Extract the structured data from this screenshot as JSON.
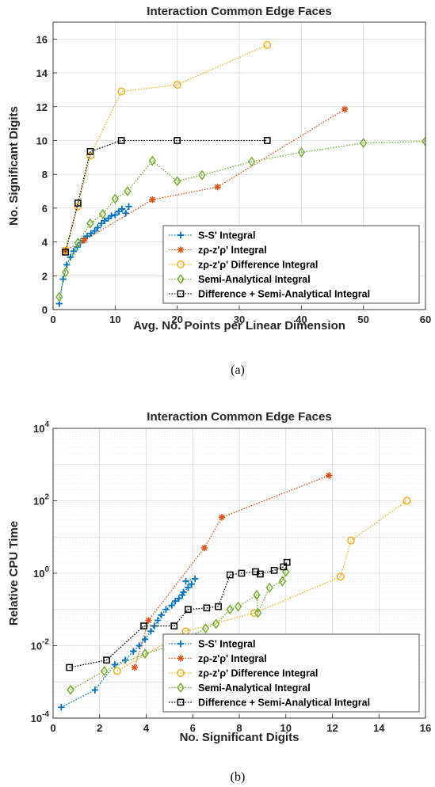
{
  "colors": {
    "ss": "#0072BD",
    "zrho": "#D95319",
    "diff": "#EDB120",
    "semi": "#77AC30",
    "comb": "#000000",
    "grid": "#d9d9d9",
    "axis": "#262626"
  },
  "chart_data": [
    {
      "type": "line",
      "title": "Interaction Common Edge Faces",
      "xlabel": "Avg. No. Points per Linear Dimension",
      "ylabel": "No. Significant Digits",
      "caption": "(a)",
      "xlim": [
        0,
        60
      ],
      "ylim": [
        0,
        17
      ],
      "xticks": [
        0,
        10,
        20,
        30,
        40,
        50,
        60
      ],
      "yticks": [
        0,
        2,
        4,
        6,
        8,
        10,
        12,
        14,
        16
      ],
      "grid": true,
      "legend_position": "bottom-right",
      "series": [
        {
          "name": "S-S' Integral",
          "color_key": "ss",
          "marker": "plus",
          "x": [
            1,
            1.6,
            2.2,
            2.8,
            3.3,
            3.9,
            4.4,
            5.0,
            5.5,
            6.1,
            6.7,
            7.2,
            7.8,
            8.3,
            8.9,
            9.4,
            10.0,
            10.6,
            11.1,
            11.7,
            12.2
          ],
          "y": [
            0.35,
            1.8,
            2.65,
            3.1,
            3.45,
            3.7,
            3.95,
            4.2,
            4.35,
            4.5,
            4.65,
            4.85,
            5.1,
            5.25,
            5.4,
            5.55,
            5.6,
            5.8,
            5.95,
            5.7,
            6.1
          ]
        },
        {
          "name": "zρ-z'ρ' Integral",
          "color_key": "zrho",
          "marker": "star",
          "x": [
            2,
            5,
            16,
            26.5,
            47
          ],
          "y": [
            3.5,
            4.1,
            6.5,
            7.25,
            11.85
          ]
        },
        {
          "name": "zρ-z'ρ' Difference Integral",
          "color_key": "diff",
          "marker": "circle",
          "x": [
            2,
            4,
            6,
            11,
            20,
            34.5
          ],
          "y": [
            3.5,
            6.1,
            9.1,
            12.9,
            13.3,
            15.65
          ]
        },
        {
          "name": "Semi-Analytical Integral",
          "color_key": "semi",
          "marker": "diamond",
          "x": [
            1,
            2,
            4,
            6,
            8,
            10,
            12,
            16,
            20,
            24,
            32,
            40,
            50,
            60
          ],
          "y": [
            0.75,
            2.2,
            3.95,
            5.1,
            5.65,
            6.55,
            7.0,
            8.8,
            7.6,
            7.95,
            8.75,
            9.3,
            9.85,
            9.95
          ]
        },
        {
          "name": "Difference + Semi-Analytical Integral",
          "color_key": "comb",
          "marker": "square",
          "x": [
            2,
            4,
            6,
            11,
            20,
            34.5
          ],
          "y": [
            3.4,
            6.3,
            9.35,
            10.0,
            10.0,
            10.0
          ]
        }
      ]
    },
    {
      "type": "line",
      "title": "Interaction Common Edge Faces",
      "xlabel": "No. Significant Digits",
      "ylabel": "Relative CPU Time",
      "caption": "(b)",
      "xlim": [
        0,
        16
      ],
      "ylim_log10": [
        -4,
        4
      ],
      "yscale": "log",
      "xticks": [
        0,
        2,
        4,
        6,
        8,
        10,
        12,
        14,
        16
      ],
      "yticks_exp": [
        -4,
        -2,
        0,
        2,
        4
      ],
      "grid": true,
      "legend_position": "bottom-right",
      "series": [
        {
          "name": "S-S' Integral",
          "color_key": "ss",
          "marker": "plus",
          "x": [
            0.35,
            1.8,
            2.65,
            3.1,
            3.45,
            3.7,
            3.95,
            4.2,
            4.35,
            4.5,
            4.65,
            4.85,
            5.1,
            5.25,
            5.4,
            5.55,
            5.6,
            5.8,
            5.95,
            5.7,
            6.1
          ],
          "y": [
            0.0002,
            0.0006,
            0.003,
            0.004,
            0.007,
            0.01,
            0.015,
            0.025,
            0.035,
            0.05,
            0.07,
            0.1,
            0.13,
            0.17,
            0.2,
            0.25,
            0.3,
            0.4,
            0.5,
            0.6,
            0.7
          ]
        },
        {
          "name": "zρ-z'ρ' Integral",
          "color_key": "zrho",
          "marker": "star",
          "x": [
            3.5,
            4.1,
            6.5,
            7.25,
            11.85
          ],
          "y": [
            0.0025,
            0.05,
            5,
            35,
            500
          ]
        },
        {
          "name": "zρ-z'ρ' Difference Integral",
          "color_key": "diff",
          "marker": "circle",
          "x": [
            2.75,
            5.7,
            8.65,
            12.35,
            12.8,
            15.2
          ],
          "y": [
            0.002,
            0.025,
            0.08,
            0.8,
            8,
            100
          ]
        },
        {
          "name": "Semi-Analytical Integral",
          "color_key": "semi",
          "marker": "diamond",
          "x": [
            0.75,
            2.2,
            3.95,
            5.1,
            5.65,
            6.55,
            7.0,
            7.6,
            7.95,
            8.75,
            8.8,
            9.3,
            9.85,
            10.0
          ],
          "y": [
            0.0006,
            0.002,
            0.006,
            0.01,
            0.015,
            0.03,
            0.04,
            0.1,
            0.12,
            0.25,
            0.08,
            0.4,
            0.6,
            1.1
          ]
        },
        {
          "name": "Difference + Semi-Analytical Integral",
          "color_key": "comb",
          "marker": "square",
          "x": [
            0.7,
            2.3,
            3.9,
            5.2,
            5.8,
            6.6,
            7.1,
            7.6,
            8.1,
            8.7,
            8.9,
            9.5,
            9.9,
            10.05
          ],
          "y": [
            0.0025,
            0.004,
            0.035,
            0.035,
            0.1,
            0.11,
            0.12,
            0.9,
            1.0,
            1.1,
            0.95,
            1.2,
            1.5,
            2.0
          ]
        }
      ]
    }
  ]
}
